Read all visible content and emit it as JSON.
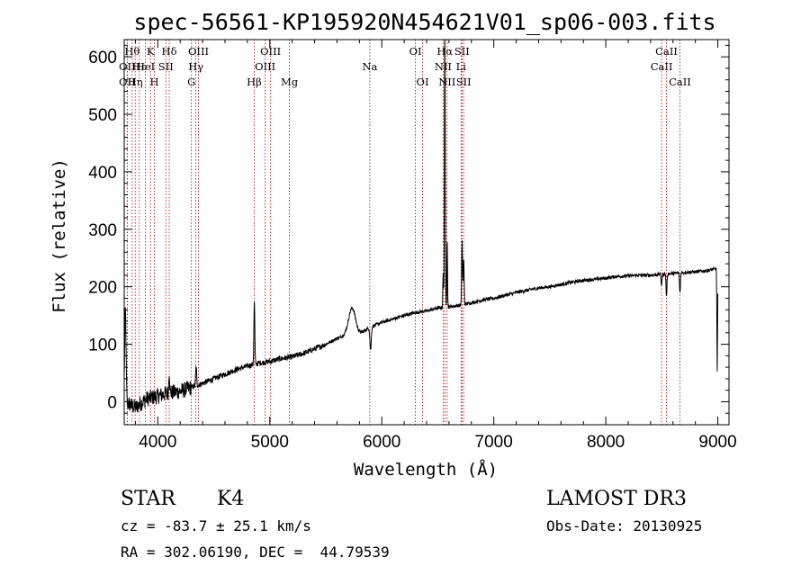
{
  "chart_data": {
    "type": "line",
    "title": "spec-56561-KP195920N454621V01_sp06-003.fits",
    "xlabel": "Wavelength (Å)",
    "ylabel": "Flux (relative)",
    "xlim": [
      3700,
      9100
    ],
    "ylim": [
      -40,
      630
    ],
    "xticks": [
      4000,
      5000,
      6000,
      7000,
      8000,
      9000
    ],
    "yticks": [
      0,
      100,
      200,
      300,
      400,
      500,
      600
    ],
    "continuum": [
      [
        3700,
        0
      ],
      [
        3800,
        -10
      ],
      [
        3900,
        5
      ],
      [
        4000,
        10
      ],
      [
        4100,
        15
      ],
      [
        4200,
        18
      ],
      [
        4300,
        25
      ],
      [
        4400,
        32
      ],
      [
        4500,
        40
      ],
      [
        4600,
        48
      ],
      [
        4700,
        56
      ],
      [
        4800,
        62
      ],
      [
        4900,
        67
      ],
      [
        5000,
        70
      ],
      [
        5100,
        75
      ],
      [
        5200,
        78
      ],
      [
        5300,
        84
      ],
      [
        5400,
        92
      ],
      [
        5500,
        100
      ],
      [
        5600,
        110
      ],
      [
        5700,
        118
      ],
      [
        5800,
        118
      ],
      [
        5900,
        130
      ],
      [
        6000,
        138
      ],
      [
        6100,
        144
      ],
      [
        6200,
        150
      ],
      [
        6300,
        155
      ],
      [
        6400,
        158
      ],
      [
        6500,
        163
      ],
      [
        6600,
        165
      ],
      [
        6700,
        168
      ],
      [
        6800,
        172
      ],
      [
        6900,
        177
      ],
      [
        7000,
        180
      ],
      [
        7100,
        185
      ],
      [
        7200,
        190
      ],
      [
        7300,
        194
      ],
      [
        7400,
        198
      ],
      [
        7500,
        200
      ],
      [
        7600,
        204
      ],
      [
        7700,
        208
      ],
      [
        7800,
        211
      ],
      [
        7900,
        213
      ],
      [
        8000,
        215
      ],
      [
        8100,
        218
      ],
      [
        8200,
        219
      ],
      [
        8300,
        220
      ],
      [
        8400,
        220
      ],
      [
        8500,
        222
      ],
      [
        8600,
        223
      ],
      [
        8700,
        225
      ],
      [
        8800,
        226
      ],
      [
        8900,
        228
      ],
      [
        9000,
        232
      ]
    ],
    "features": [
      {
        "center": 3710,
        "width": 6,
        "amp": 160
      },
      {
        "center": 4102,
        "width": 4,
        "amp": 40
      },
      {
        "center": 4342,
        "width": 4,
        "amp": 35
      },
      {
        "center": 4862,
        "width": 4,
        "amp": 110
      },
      {
        "center": 5735,
        "width": 30,
        "amp": 45
      },
      {
        "center": 5900,
        "width": 6,
        "amp": -40
      },
      {
        "center": 6548,
        "width": 3,
        "amp": 60
      },
      {
        "center": 6563,
        "width": 4,
        "amp": 470
      },
      {
        "center": 6584,
        "width": 3,
        "amp": 120
      },
      {
        "center": 6717,
        "width": 4,
        "amp": 110
      },
      {
        "center": 6731,
        "width": 4,
        "amp": 80
      },
      {
        "center": 8498,
        "width": 4,
        "amp": -20
      },
      {
        "center": 8542,
        "width": 4,
        "amp": -40
      },
      {
        "center": 8662,
        "width": 4,
        "amp": -35
      },
      {
        "center": 8995,
        "width": 3,
        "amp": -180
      }
    ],
    "spectral_lines": [
      {
        "wavelength": 3727,
        "label": "OII",
        "row": 1
      },
      {
        "wavelength": 3727,
        "label": "OII",
        "row": 2
      },
      {
        "wavelength": 3771,
        "label": "Hθ",
        "row": 0
      },
      {
        "wavelength": 3798,
        "label": "Hη",
        "row": 2
      },
      {
        "wavelength": 3835,
        "label": "Hε",
        "row": 1
      },
      {
        "wavelength": 3889,
        "label": "HeI",
        "row": 1
      },
      {
        "wavelength": 3934,
        "label": "K",
        "row": 0
      },
      {
        "wavelength": 3969,
        "label": "H",
        "row": 2
      },
      {
        "wavelength": 4072,
        "label": "SII",
        "row": 1
      },
      {
        "wavelength": 4102,
        "label": "Hδ",
        "row": 0
      },
      {
        "wavelength": 4300,
        "label": "G",
        "row": 2
      },
      {
        "wavelength": 4340,
        "label": "Hγ",
        "row": 1
      },
      {
        "wavelength": 4363,
        "label": "OIII",
        "row": 0
      },
      {
        "wavelength": 4861,
        "label": "Hβ",
        "row": 2
      },
      {
        "wavelength": 4959,
        "label": "OIII",
        "row": 1
      },
      {
        "wavelength": 5007,
        "label": "OIII",
        "row": 0
      },
      {
        "wavelength": 5175,
        "label": "Mg",
        "row": 2
      },
      {
        "wavelength": 5893,
        "label": "Na",
        "row": 1
      },
      {
        "wavelength": 6300,
        "label": "OI",
        "row": 0
      },
      {
        "wavelength": 6364,
        "label": "OI",
        "row": 2
      },
      {
        "wavelength": 6548,
        "label": "NII",
        "row": 1
      },
      {
        "wavelength": 6563,
        "label": "Hα",
        "row": 0
      },
      {
        "wavelength": 6583,
        "label": "NII",
        "row": 2
      },
      {
        "wavelength": 6708,
        "label": "Li",
        "row": 1
      },
      {
        "wavelength": 6716,
        "label": "SII",
        "row": 0
      },
      {
        "wavelength": 6731,
        "label": "SII",
        "row": 2
      },
      {
        "wavelength": 8498,
        "label": "CaII",
        "row": 1
      },
      {
        "wavelength": 8542,
        "label": "CaII",
        "row": 0
      },
      {
        "wavelength": 8662,
        "label": "CaII",
        "row": 2
      }
    ],
    "colors": {
      "spectrum": "#000000",
      "lines": "#b40000",
      "axes": "#000000"
    }
  },
  "info": {
    "class": "STAR",
    "subclass": "K4",
    "survey": "LAMOST DR3",
    "cz": "cz = -83.7 ± 25.1 km/s",
    "obs_date": "Obs-Date: 20130925",
    "coords": "RA = 302.06190, DEC =  44.79539"
  }
}
